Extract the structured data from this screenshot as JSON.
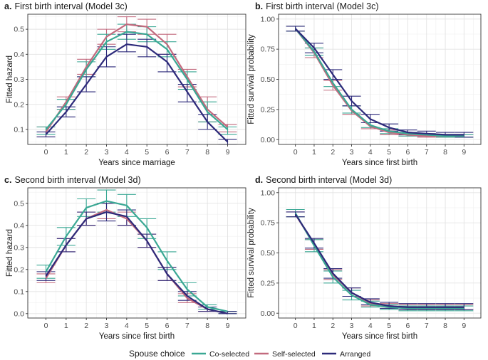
{
  "legend": {
    "title": "Spouse choice",
    "entries": [
      {
        "name": "Co-selected",
        "color": "#3aa894"
      },
      {
        "name": "Self-selected",
        "color": "#c26a7e"
      },
      {
        "name": "Arranged",
        "color": "#2d2a7a"
      }
    ]
  },
  "chart_data": [
    {
      "id": "a",
      "type": "line",
      "title_bold": "a.",
      "title": "First birth interval (Model 3c)",
      "xlabel": "Years since marriage",
      "ylabel": "Fitted hazard",
      "x": [
        0,
        1,
        2,
        3,
        4,
        5,
        6,
        7,
        8,
        9
      ],
      "xlim": [
        -0.9,
        9.9
      ],
      "ylim": [
        0.04,
        0.56
      ],
      "yticks": [
        0.1,
        0.2,
        0.3,
        0.4,
        0.5
      ],
      "ytick_labels": [
        "0.1",
        "0.2",
        "0.3",
        "0.4",
        "0.5"
      ],
      "series": [
        {
          "name": "Co-selected",
          "values": [
            0.1,
            0.2,
            0.34,
            0.45,
            0.49,
            0.48,
            0.42,
            0.3,
            0.17,
            0.1
          ],
          "lower": [
            0.08,
            0.18,
            0.31,
            0.42,
            0.46,
            0.45,
            0.39,
            0.26,
            0.13,
            0.08
          ],
          "upper": [
            0.11,
            0.22,
            0.37,
            0.48,
            0.52,
            0.51,
            0.45,
            0.33,
            0.21,
            0.11
          ]
        },
        {
          "name": "Self-selected",
          "values": [
            0.09,
            0.21,
            0.35,
            0.47,
            0.52,
            0.51,
            0.44,
            0.31,
            0.18,
            0.11
          ],
          "lower": [
            0.07,
            0.18,
            0.32,
            0.44,
            0.49,
            0.48,
            0.4,
            0.27,
            0.13,
            0.09
          ],
          "upper": [
            0.11,
            0.23,
            0.38,
            0.5,
            0.55,
            0.54,
            0.48,
            0.34,
            0.23,
            0.12
          ]
        },
        {
          "name": "Arranged",
          "values": [
            0.08,
            0.17,
            0.28,
            0.39,
            0.44,
            0.43,
            0.37,
            0.25,
            0.13,
            0.05
          ],
          "lower": [
            0.07,
            0.15,
            0.25,
            0.35,
            0.41,
            0.39,
            0.33,
            0.21,
            0.1,
            0.04
          ],
          "upper": [
            0.09,
            0.19,
            0.31,
            0.43,
            0.48,
            0.46,
            0.4,
            0.28,
            0.16,
            0.06
          ]
        }
      ]
    },
    {
      "id": "b",
      "type": "line",
      "title_bold": "b.",
      "title": "First birth  interval (Model 3c)",
      "xlabel": "Years since first birth",
      "ylabel": "Fitted survival probability",
      "x": [
        0,
        1,
        2,
        3,
        4,
        5,
        6,
        7,
        8,
        9
      ],
      "xlim": [
        -0.9,
        9.9
      ],
      "ylim": [
        -0.04,
        1.04
      ],
      "yticks": [
        0,
        0.25,
        0.5,
        0.75,
        1.0
      ],
      "ytick_labels": [
        "0.00",
        "0.25",
        "0.50",
        "0.75",
        "1.00"
      ],
      "series": [
        {
          "name": "Co-selected",
          "values": [
            0.92,
            0.73,
            0.47,
            0.25,
            0.12,
            0.07,
            0.05,
            0.04,
            0.03,
            0.03
          ],
          "lower": [
            0.9,
            0.7,
            0.44,
            0.22,
            0.1,
            0.05,
            0.03,
            0.03,
            0.02,
            0.02
          ],
          "upper": [
            0.94,
            0.76,
            0.5,
            0.28,
            0.14,
            0.09,
            0.06,
            0.05,
            0.04,
            0.04
          ]
        },
        {
          "name": "Self-selected",
          "values": [
            0.92,
            0.72,
            0.45,
            0.24,
            0.11,
            0.06,
            0.04,
            0.03,
            0.03,
            0.03
          ],
          "lower": [
            0.9,
            0.68,
            0.41,
            0.21,
            0.09,
            0.04,
            0.03,
            0.02,
            0.02,
            0.02
          ],
          "upper": [
            0.94,
            0.76,
            0.49,
            0.28,
            0.14,
            0.08,
            0.06,
            0.05,
            0.04,
            0.04
          ]
        },
        {
          "name": "Arranged",
          "values": [
            0.92,
            0.76,
            0.54,
            0.32,
            0.17,
            0.1,
            0.06,
            0.05,
            0.04,
            0.04
          ],
          "lower": [
            0.9,
            0.72,
            0.5,
            0.28,
            0.14,
            0.07,
            0.04,
            0.03,
            0.03,
            0.02
          ],
          "upper": [
            0.94,
            0.8,
            0.58,
            0.36,
            0.21,
            0.13,
            0.08,
            0.07,
            0.06,
            0.06
          ]
        }
      ]
    },
    {
      "id": "c",
      "type": "line",
      "title_bold": "c.",
      "title": "Second birth interval (Model 3d)",
      "xlabel": "Years since first birth",
      "ylabel": "Fitted hazard",
      "x": [
        0,
        1,
        2,
        3,
        4,
        5,
        6,
        7,
        8,
        9
      ],
      "xlim": [
        -0.9,
        9.9
      ],
      "ylim": [
        -0.02,
        0.57
      ],
      "yticks": [
        0,
        0.1,
        0.2,
        0.3,
        0.4,
        0.5
      ],
      "ytick_labels": [
        "0.0",
        "0.1",
        "0.2",
        "0.3",
        "0.4",
        "0.5"
      ],
      "series": [
        {
          "name": "Co-selected",
          "values": [
            0.19,
            0.35,
            0.48,
            0.51,
            0.49,
            0.39,
            0.24,
            0.11,
            0.03,
            0.01
          ],
          "lower": [
            0.16,
            0.31,
            0.44,
            0.46,
            0.44,
            0.34,
            0.2,
            0.08,
            0.02,
            0.0
          ],
          "upper": [
            0.22,
            0.39,
            0.52,
            0.56,
            0.54,
            0.43,
            0.28,
            0.14,
            0.04,
            0.01
          ]
        },
        {
          "name": "Self-selected",
          "values": [
            0.16,
            0.31,
            0.43,
            0.47,
            0.43,
            0.33,
            0.18,
            0.07,
            0.02,
            0.0
          ],
          "lower": [
            0.14,
            0.28,
            0.4,
            0.43,
            0.4,
            0.3,
            0.15,
            0.05,
            0.01,
            0.0
          ],
          "upper": [
            0.18,
            0.34,
            0.46,
            0.5,
            0.46,
            0.36,
            0.21,
            0.09,
            0.03,
            0.01
          ]
        },
        {
          "name": "Arranged",
          "values": [
            0.17,
            0.31,
            0.43,
            0.46,
            0.44,
            0.33,
            0.18,
            0.08,
            0.02,
            0.0
          ],
          "lower": [
            0.15,
            0.28,
            0.4,
            0.42,
            0.4,
            0.3,
            0.15,
            0.06,
            0.01,
            0.0
          ],
          "upper": [
            0.19,
            0.34,
            0.46,
            0.5,
            0.47,
            0.36,
            0.21,
            0.1,
            0.03,
            0.01
          ]
        }
      ]
    },
    {
      "id": "d",
      "type": "line",
      "title_bold": "d.",
      "title": "Second birth interval (Model 3d)",
      "xlabel": "Years since first birth",
      "ylabel": "Fitted survival probability",
      "x": [
        0,
        1,
        2,
        3,
        4,
        5,
        6,
        7,
        8,
        9
      ],
      "xlim": [
        -0.9,
        9.9
      ],
      "ylim": [
        -0.04,
        1.04
      ],
      "yticks": [
        0,
        0.25,
        0.5,
        0.75,
        1.0
      ],
      "ytick_labels": [
        "0.00",
        "0.25",
        "0.50",
        "0.75",
        "1.00"
      ],
      "series": [
        {
          "name": "Co-selected",
          "values": [
            0.83,
            0.56,
            0.3,
            0.15,
            0.07,
            0.05,
            0.04,
            0.04,
            0.04,
            0.04
          ],
          "lower": [
            0.8,
            0.51,
            0.25,
            0.11,
            0.05,
            0.03,
            0.02,
            0.02,
            0.02,
            0.02
          ],
          "upper": [
            0.86,
            0.61,
            0.35,
            0.19,
            0.1,
            0.07,
            0.06,
            0.06,
            0.06,
            0.06
          ]
        },
        {
          "name": "Self-selected",
          "values": [
            0.82,
            0.57,
            0.32,
            0.17,
            0.08,
            0.06,
            0.05,
            0.05,
            0.05,
            0.05
          ],
          "lower": [
            0.8,
            0.53,
            0.28,
            0.14,
            0.06,
            0.04,
            0.03,
            0.03,
            0.03,
            0.03
          ],
          "upper": [
            0.84,
            0.61,
            0.36,
            0.21,
            0.11,
            0.08,
            0.07,
            0.07,
            0.07,
            0.07
          ]
        },
        {
          "name": "Arranged",
          "values": [
            0.82,
            0.58,
            0.33,
            0.17,
            0.09,
            0.06,
            0.05,
            0.05,
            0.05,
            0.05
          ],
          "lower": [
            0.8,
            0.54,
            0.29,
            0.14,
            0.07,
            0.04,
            0.03,
            0.03,
            0.03,
            0.03
          ],
          "upper": [
            0.84,
            0.62,
            0.37,
            0.21,
            0.12,
            0.09,
            0.08,
            0.08,
            0.08,
            0.08
          ]
        }
      ]
    }
  ]
}
